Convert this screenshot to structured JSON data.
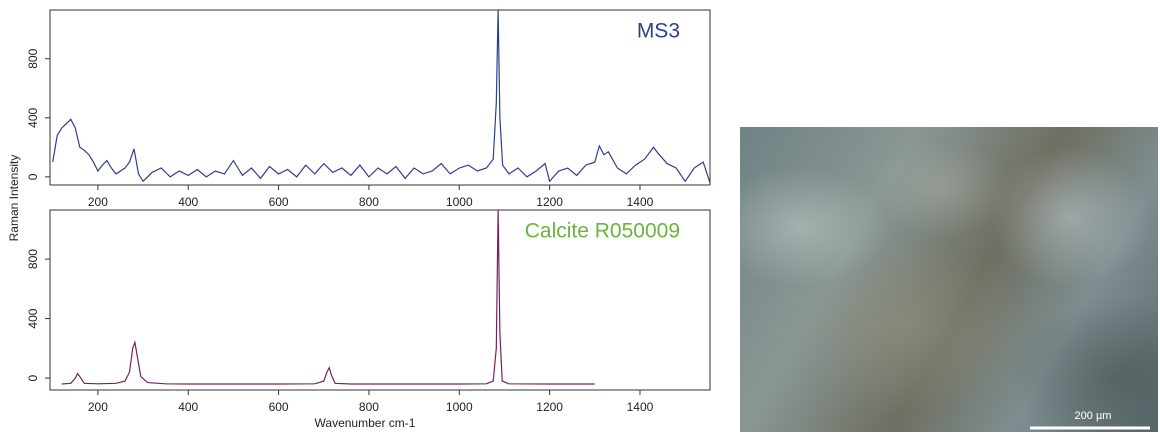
{
  "chart_data": [
    {
      "type": "line",
      "title": "MS3",
      "title_color": "#2e3f8f",
      "ylabel": "Raman Intensity",
      "x": [
        100,
        110,
        120,
        130,
        140,
        150,
        160,
        170,
        180,
        190,
        200,
        210,
        220,
        230,
        240,
        250,
        260,
        270,
        280,
        290,
        300,
        320,
        340,
        360,
        380,
        400,
        420,
        440,
        460,
        480,
        500,
        520,
        540,
        560,
        580,
        600,
        620,
        640,
        660,
        680,
        700,
        720,
        740,
        760,
        780,
        800,
        820,
        840,
        860,
        880,
        900,
        920,
        940,
        960,
        980,
        1000,
        1020,
        1040,
        1060,
        1075,
        1082,
        1086,
        1090,
        1096,
        1110,
        1130,
        1150,
        1170,
        1190,
        1200,
        1220,
        1240,
        1260,
        1280,
        1300,
        1310,
        1320,
        1330,
        1350,
        1370,
        1390,
        1410,
        1430,
        1440,
        1460,
        1480,
        1500,
        1520,
        1540,
        1555
      ],
      "series": [
        {
          "name": "MS3",
          "color": "#2e3f8f",
          "values": [
            100,
            280,
            330,
            360,
            390,
            330,
            200,
            180,
            150,
            100,
            40,
            80,
            110,
            60,
            20,
            40,
            60,
            100,
            190,
            20,
            -30,
            30,
            60,
            0,
            40,
            10,
            50,
            0,
            40,
            20,
            110,
            10,
            60,
            -10,
            70,
            20,
            50,
            0,
            80,
            20,
            90,
            30,
            60,
            10,
            80,
            0,
            60,
            20,
            70,
            -10,
            60,
            20,
            40,
            90,
            20,
            60,
            80,
            40,
            60,
            120,
            500,
            1130,
            400,
            80,
            20,
            60,
            0,
            40,
            90,
            -30,
            40,
            60,
            10,
            80,
            100,
            210,
            150,
            170,
            60,
            20,
            80,
            120,
            200,
            160,
            90,
            60,
            -30,
            60,
            100,
            -40
          ]
        }
      ],
      "xlim": [
        94,
        1555
      ],
      "ylim": [
        -55,
        1130
      ],
      "xticks": [
        200,
        400,
        600,
        800,
        1000,
        1200,
        1400
      ],
      "yticks": [
        0,
        400,
        800
      ]
    },
    {
      "type": "line",
      "title": "Calcite R050009",
      "title_color": "#6cb33f",
      "xlabel": "Wavenumber cm-1",
      "x": [
        120,
        140,
        150,
        155,
        160,
        170,
        200,
        240,
        260,
        270,
        277,
        282,
        287,
        295,
        310,
        350,
        400,
        500,
        600,
        680,
        700,
        707,
        712,
        717,
        725,
        760,
        900,
        1000,
        1060,
        1075,
        1082,
        1086,
        1090,
        1095,
        1110,
        1200,
        1300
      ],
      "series": [
        {
          "name": "Calcite R050009",
          "color": "#7a1f5c",
          "values": [
            -40,
            -35,
            0,
            30,
            10,
            -35,
            -38,
            -35,
            -20,
            40,
            200,
            240,
            150,
            10,
            -30,
            -38,
            -40,
            -40,
            -40,
            -38,
            -20,
            40,
            70,
            20,
            -35,
            -40,
            -40,
            -40,
            -38,
            -20,
            200,
            1130,
            300,
            -20,
            -38,
            -40,
            -40
          ]
        }
      ],
      "xlim": [
        94,
        1555
      ],
      "ylim": [
        -80,
        1130
      ],
      "xticks": [
        200,
        400,
        600,
        800,
        1000,
        1200,
        1400
      ],
      "yticks": [
        0,
        400,
        800
      ]
    }
  ],
  "image": {
    "scale_bar": "200 µm"
  }
}
